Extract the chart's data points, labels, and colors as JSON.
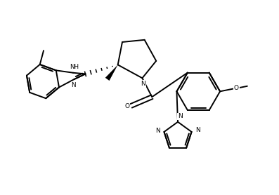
{
  "background_color": "#ffffff",
  "line_color": "#000000",
  "line_width": 1.4,
  "figsize": [
    3.97,
    2.78
  ],
  "dpi": 100,
  "xlim": [
    0,
    10
  ],
  "ylim": [
    0,
    7
  ]
}
